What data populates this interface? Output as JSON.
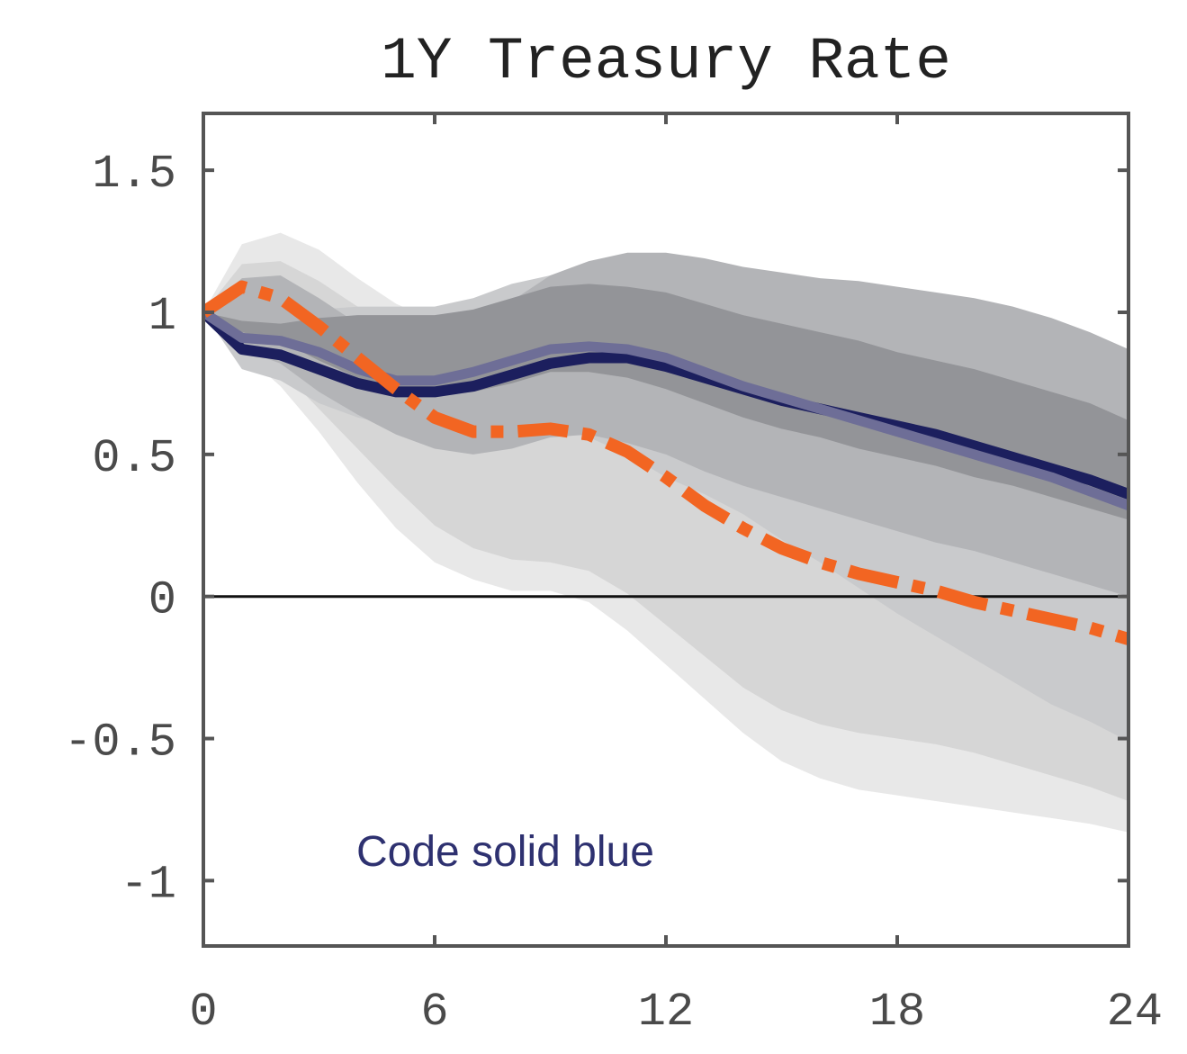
{
  "chart_data": {
    "type": "line",
    "title": "1Y Treasury Rate",
    "xlabel": "",
    "ylabel": "",
    "xlim": [
      0,
      24
    ],
    "ylim": [
      -1.23,
      1.7
    ],
    "x_ticks": [
      0,
      6,
      12,
      18,
      24
    ],
    "x_tick_labels": [
      "0",
      "6",
      "12",
      "18",
      "24"
    ],
    "y_ticks": [
      1.5,
      1,
      0.5,
      0,
      -0.5,
      -1
    ],
    "y_tick_labels": [
      "1.5",
      "1",
      "0.5",
      "0",
      "-0.5",
      "-1"
    ],
    "zero_line": 0,
    "grid": false,
    "annotation": "Code solid blue",
    "x": [
      0,
      1,
      2,
      3,
      4,
      5,
      6,
      7,
      8,
      9,
      10,
      11,
      12,
      13,
      14,
      15,
      16,
      17,
      18,
      19,
      20,
      21,
      22,
      23,
      24
    ],
    "series": [
      {
        "values": [
          1.0,
          0.87,
          0.85,
          0.8,
          0.75,
          0.72,
          0.72,
          0.74,
          0.78,
          0.82,
          0.84,
          0.84,
          0.81,
          0.77,
          0.73,
          0.69,
          0.66,
          0.63,
          0.6,
          0.57,
          0.53,
          0.49,
          0.45,
          0.41,
          0.36
        ],
        "style": "solid",
        "color": "#1c1f5e"
      },
      {
        "values": [
          1.0,
          0.91,
          0.9,
          0.86,
          0.8,
          0.76,
          0.76,
          0.79,
          0.83,
          0.87,
          0.88,
          0.87,
          0.84,
          0.79,
          0.74,
          0.7,
          0.66,
          0.62,
          0.58,
          0.54,
          0.5,
          0.46,
          0.42,
          0.37,
          0.32
        ],
        "style": "solid",
        "color": "#6e6e97"
      },
      {
        "values": [
          1.0,
          1.09,
          1.05,
          0.95,
          0.84,
          0.73,
          0.63,
          0.58,
          0.58,
          0.59,
          0.57,
          0.51,
          0.42,
          0.32,
          0.24,
          0.17,
          0.12,
          0.08,
          0.05,
          0.02,
          -0.02,
          -0.05,
          -0.08,
          -0.11,
          -0.15
        ],
        "style": "dashed",
        "color": "#f26522"
      }
    ],
    "bands": [
      {
        "upper": [
          1.0,
          1.24,
          1.28,
          1.22,
          1.12,
          1.03,
          0.97,
          0.94,
          0.92,
          0.89,
          0.86,
          0.81,
          0.75,
          0.7,
          0.64,
          0.59,
          0.55,
          0.51,
          0.47,
          0.43,
          0.39,
          0.34,
          0.29,
          0.23,
          0.16
        ],
        "lower": [
          1.0,
          0.86,
          0.74,
          0.58,
          0.4,
          0.24,
          0.12,
          0.06,
          0.02,
          0.02,
          -0.02,
          -0.12,
          -0.24,
          -0.36,
          -0.48,
          -0.58,
          -0.64,
          -0.68,
          -0.7,
          -0.72,
          -0.74,
          -0.76,
          -0.78,
          -0.8,
          -0.83
        ],
        "color": "#e8e8e8"
      },
      {
        "upper": [
          1.0,
          1.17,
          1.18,
          1.11,
          1.02,
          0.93,
          0.87,
          0.84,
          0.82,
          0.79,
          0.76,
          0.71,
          0.65,
          0.59,
          0.53,
          0.48,
          0.43,
          0.39,
          0.35,
          0.31,
          0.27,
          0.22,
          0.17,
          0.12,
          0.06
        ],
        "lower": [
          1.0,
          0.9,
          0.8,
          0.66,
          0.52,
          0.38,
          0.25,
          0.17,
          0.13,
          0.12,
          0.09,
          0.01,
          -0.1,
          -0.21,
          -0.32,
          -0.4,
          -0.45,
          -0.48,
          -0.5,
          -0.52,
          -0.55,
          -0.59,
          -0.63,
          -0.67,
          -0.72
        ],
        "color": "#d6d6d6"
      },
      {
        "upper": [
          1.0,
          1.03,
          1.01,
          1.01,
          1.02,
          1.02,
          1.02,
          1.05,
          1.1,
          1.13,
          1.16,
          1.17,
          1.15,
          1.13,
          1.1,
          1.09,
          1.08,
          1.07,
          1.05,
          1.02,
          0.99,
          0.96,
          0.92,
          0.87,
          0.83
        ],
        "lower": [
          1.0,
          0.8,
          0.76,
          0.68,
          0.63,
          0.6,
          0.58,
          0.58,
          0.6,
          0.6,
          0.56,
          0.5,
          0.42,
          0.36,
          0.29,
          0.2,
          0.12,
          0.03,
          -0.06,
          -0.14,
          -0.22,
          -0.3,
          -0.38,
          -0.44,
          -0.51
        ],
        "color": "#c9cacc"
      },
      {
        "upper": [
          1.0,
          1.12,
          1.13,
          1.05,
          0.96,
          0.89,
          0.89,
          0.95,
          1.04,
          1.13,
          1.18,
          1.21,
          1.21,
          1.19,
          1.16,
          1.14,
          1.12,
          1.11,
          1.09,
          1.07,
          1.05,
          1.02,
          0.98,
          0.93,
          0.87
        ],
        "lower": [
          1.0,
          0.87,
          0.82,
          0.72,
          0.64,
          0.57,
          0.52,
          0.5,
          0.52,
          0.56,
          0.57,
          0.54,
          0.5,
          0.44,
          0.39,
          0.35,
          0.31,
          0.27,
          0.23,
          0.19,
          0.16,
          0.12,
          0.08,
          0.04,
          0.0
        ],
        "color": "#b3b4b7"
      },
      {
        "upper": [
          1.0,
          0.97,
          0.96,
          0.98,
          0.99,
          0.99,
          0.99,
          1.01,
          1.05,
          1.09,
          1.1,
          1.09,
          1.07,
          1.03,
          0.99,
          0.96,
          0.93,
          0.9,
          0.86,
          0.83,
          0.8,
          0.76,
          0.72,
          0.68,
          0.62
        ],
        "lower": [
          1.0,
          0.93,
          0.9,
          0.83,
          0.77,
          0.73,
          0.71,
          0.72,
          0.75,
          0.79,
          0.79,
          0.77,
          0.73,
          0.68,
          0.63,
          0.59,
          0.56,
          0.52,
          0.49,
          0.46,
          0.42,
          0.39,
          0.35,
          0.31,
          0.27
        ],
        "color": "#939498"
      }
    ],
    "colors": {
      "axis": "#555555",
      "zero_line": "#111111"
    }
  }
}
